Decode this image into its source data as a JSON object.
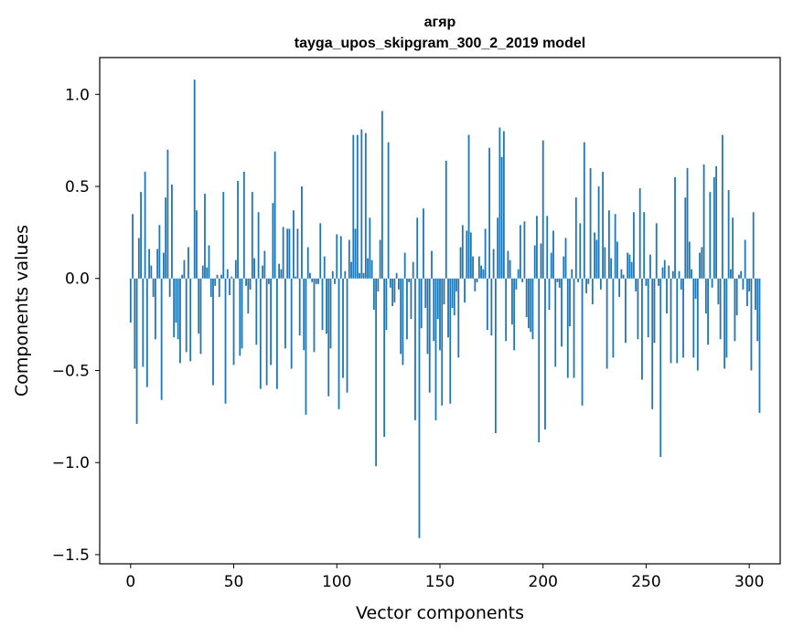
{
  "chart_data": {
    "type": "bar",
    "title": "агяр",
    "subtitle": "tayga_upos_skipgram_300_2_2019 model",
    "xlabel": "Vector components",
    "ylabel": "Components values",
    "xlim": [
      -15,
      315
    ],
    "ylim": [
      -1.55,
      1.2
    ],
    "xticks": [
      0,
      50,
      100,
      150,
      200,
      250,
      300
    ],
    "xtick_labels": [
      "0",
      "50",
      "100",
      "150",
      "200",
      "250",
      "300"
    ],
    "yticks": [
      -1.5,
      -1.0,
      -0.5,
      0.0,
      0.5,
      1.0
    ],
    "ytick_labels": [
      "−1.5",
      "−1.0",
      "−0.5",
      "0.0",
      "0.5",
      "1.0"
    ],
    "bar_color": "#1f77b4",
    "grid": false,
    "legend": "none",
    "series": [
      {
        "name": "агяр",
        "values": [
          -0.24,
          0.35,
          -0.49,
          -0.79,
          0.22,
          0.47,
          -0.48,
          0.58,
          -0.59,
          0.16,
          0.07,
          -0.1,
          -0.33,
          0.16,
          0.29,
          -0.66,
          0.14,
          0.44,
          0.7,
          -0.1,
          0.51,
          -0.32,
          -0.24,
          -0.33,
          -0.46,
          0.02,
          0.1,
          -0.4,
          0.17,
          -0.45,
          0.0,
          1.08,
          0.37,
          -0.3,
          -0.41,
          0.07,
          0.46,
          0.06,
          0.18,
          -0.1,
          -0.58,
          -0.04,
          0.02,
          -0.1,
          0.02,
          0.47,
          -0.68,
          0.05,
          -0.09,
          0.01,
          -0.47,
          0.1,
          0.53,
          -0.42,
          -0.38,
          0.58,
          -0.04,
          -0.19,
          -0.06,
          0.47,
          0.11,
          -0.36,
          0.36,
          -0.6,
          0.07,
          0.15,
          -0.58,
          -0.03,
          -0.47,
          0.41,
          0.69,
          -0.6,
          0.08,
          0.05,
          0.28,
          -0.38,
          0.27,
          0.27,
          -0.49,
          0.37,
          0.01,
          0.27,
          -0.31,
          0.5,
          -0.39,
          -0.74,
          0.17,
          0.03,
          -0.02,
          -0.4,
          -0.03,
          -0.03,
          0.3,
          -0.28,
          0.12,
          -0.3,
          -0.64,
          -0.38,
          0.04,
          -0.03,
          0.24,
          -0.71,
          0.23,
          -0.54,
          0.04,
          -0.62,
          0.21,
          0.09,
          0.78,
          0.27,
          0.78,
          0.03,
          0.81,
          0.03,
          0.79,
          0.11,
          0.33,
          0.1,
          -0.17,
          -1.02,
          -0.07,
          0.21,
          0.91,
          -0.86,
          -0.28,
          0.74,
          -0.05,
          -0.15,
          -0.13,
          0.03,
          -0.06,
          -0.41,
          -0.47,
          0.14,
          -0.33,
          -0.02,
          -0.22,
          0.09,
          -0.77,
          0.33,
          -1.41,
          -0.27,
          0.38,
          -0.16,
          -0.41,
          -0.62,
          0.15,
          -0.34,
          -0.77,
          -0.22,
          -0.39,
          -0.69,
          -0.14,
          0.64,
          -0.32,
          -0.68,
          -0.16,
          -0.2,
          -0.07,
          -0.43,
          0.17,
          0.29,
          -0.13,
          0.26,
          0.78,
          0.25,
          0.12,
          -0.07,
          -0.02,
          0.12,
          0.07,
          0.05,
          0.27,
          -0.28,
          0.71,
          -0.31,
          0.16,
          -0.84,
          0.33,
          0.82,
          0.66,
          0.8,
          -0.34,
          0.15,
          0.1,
          -0.25,
          -0.39,
          -0.06,
          0.05,
          0.29,
          -0.02,
          0.31,
          -0.21,
          -0.27,
          -0.29,
          -0.33,
          0.18,
          0.34,
          -0.89,
          0.19,
          0.75,
          -0.82,
          0.34,
          -0.17,
          0.14,
          0.26,
          -0.48,
          -0.02,
          -0.05,
          -0.37,
          0.12,
          0.22,
          -0.54,
          -0.26,
          0.05,
          -0.54,
          0.44,
          -0.02,
          0.3,
          -0.69,
          0.74,
          -0.08,
          -0.03,
          0.6,
          -0.14,
          0.25,
          0.21,
          0.5,
          -0.06,
          0.58,
          0.17,
          -0.49,
          0.37,
          0.11,
          -0.43,
          0.35,
          0.2,
          -0.1,
          0.05,
          0.02,
          -0.35,
          0.14,
          0.13,
          0.09,
          0.36,
          -0.07,
          -0.33,
          0.49,
          -0.55,
          0.36,
          -0.04,
          -0.32,
          0.13,
          -0.71,
          -0.35,
          0.3,
          -0.04,
          -0.97,
          0.06,
          0.1,
          -0.19,
          0.07,
          -0.46,
          0.04,
          0.55,
          -0.46,
          0.04,
          -0.06,
          -0.43,
          0.44,
          0.6,
          0.2,
          0.05,
          -0.43,
          -0.11,
          -0.5,
          0.14,
          0.17,
          0.62,
          -0.19,
          -0.36,
          0.47,
          -0.05,
          0.55,
          0.61,
          -0.14,
          -0.33,
          0.78,
          -0.49,
          -0.43,
          0.48,
          0.05,
          0.33,
          -0.34,
          -0.2,
          0.02,
          0.04,
          -0.06,
          0.21,
          -0.15,
          -0.07,
          -0.5,
          0.36,
          -0.17,
          -0.34,
          -0.73
        ]
      }
    ]
  }
}
